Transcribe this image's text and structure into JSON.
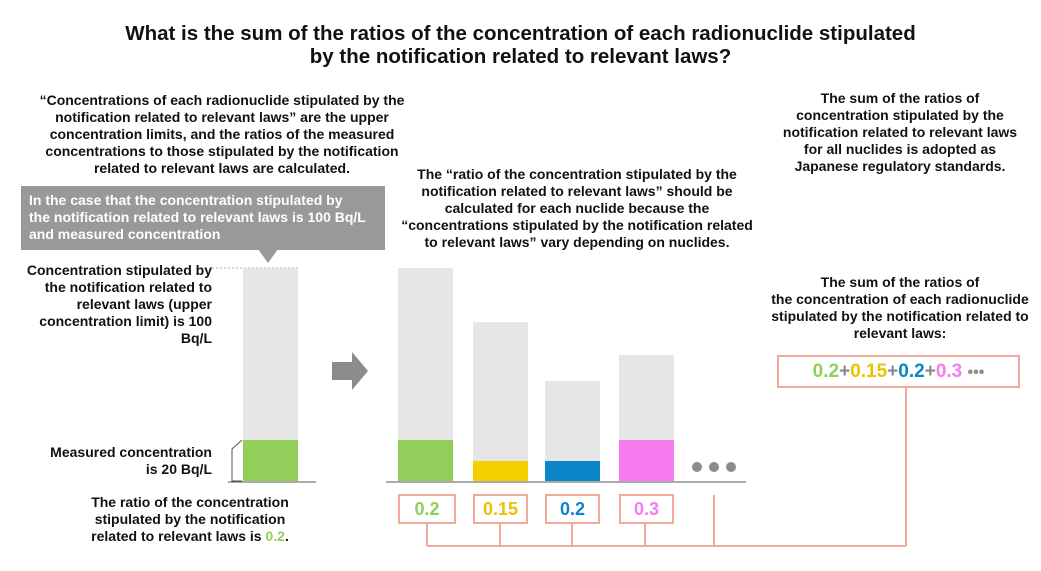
{
  "title_lines": [
    "What is the sum of the ratios of the concentration of each radionuclide stipulated",
    "by the notification related to relevant laws?"
  ],
  "left_intro": [
    "“Concentrations of each radionuclide stipulated by the",
    "notification related to relevant laws” are the upper",
    "concentration limits, and the ratios of the measured",
    "concentrations to those stipulated by the notification",
    "related to relevant laws are calculated."
  ],
  "callout": [
    "In the case that the concentration stipulated by",
    "the notification related to relevant laws is 100 Bq/L",
    "and measured concentration"
  ],
  "limit_label": [
    "Concentration stipulated by",
    "the notification related to",
    "relevant laws (upper",
    "concentration limit) is 100",
    "Bq/L"
  ],
  "measured_label": [
    "Measured concentration",
    "is 20 Bq/L"
  ],
  "ratio_text": {
    "lines": [
      "The ratio of the concentration",
      "stipulated by the notification",
      "related to relevant laws is"
    ],
    "value": "0.2",
    "end": "."
  },
  "middle_text": [
    "The “ratio of the concentration stipulated by the",
    "notification related to relevant laws” should be",
    "calculated for each nuclide because the",
    "“concentrations stipulated by the notification related",
    "to relevant laws” vary depending on nuclides."
  ],
  "right_top": [
    "The sum of the ratios of",
    "concentration stipulated by the",
    "notification related to relevant laws",
    "for all nuclides is adopted as",
    "Japanese regulatory standards."
  ],
  "right_mid": [
    "The sum of the ratios of",
    "the concentration of each radionuclide",
    "stipulated by the notification related to",
    "relevant laws:"
  ],
  "sum_expression": {
    "terms": [
      "0.2",
      "0.15",
      "0.2",
      "0.3"
    ],
    "plus": "+",
    "ellipsis": "•••"
  },
  "nuclide_values": [
    "0.2",
    "0.15",
    "0.2",
    "0.3"
  ],
  "colors": {
    "green": "#92cf5a",
    "yellow": "#f5d000",
    "blue": "#0a86c9",
    "pink": "#f67cf0",
    "bar_bg": "#e6e6e6",
    "connector": "#f2a99a",
    "callout": "#999999",
    "arrow": "#8c8c8c"
  }
}
